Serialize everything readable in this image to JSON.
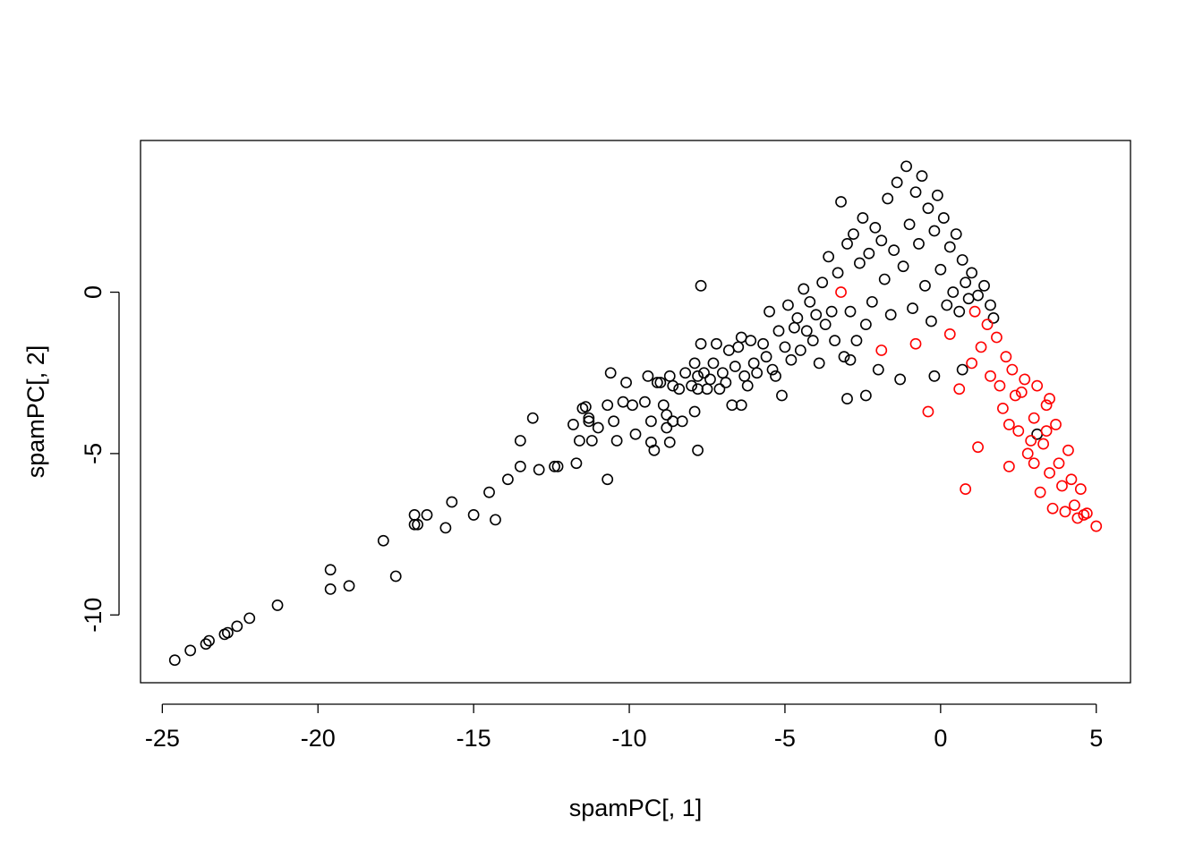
{
  "chart_data": {
    "type": "scatter",
    "xlabel": "spamPC[, 1]",
    "ylabel": "spamPC[, 2]",
    "xlim": [
      -25.7,
      6.1
    ],
    "ylim": [
      -12.1,
      4.7
    ],
    "x_ticks": [
      -25,
      -20,
      -15,
      -10,
      -5,
      0,
      5
    ],
    "x_tick_labels": [
      "-25",
      "-20",
      "-15",
      "-10",
      "-5",
      "0",
      "5"
    ],
    "y_ticks": [
      -10,
      -5,
      0
    ],
    "y_tick_labels": [
      "-10",
      "-5",
      "0"
    ],
    "grid": false,
    "marker": "open-circle",
    "series": [
      {
        "color": "#000000",
        "points": [
          [
            -24.6,
            -11.4
          ],
          [
            -24.1,
            -11.1
          ],
          [
            -23.6,
            -10.9
          ],
          [
            -23.5,
            -10.8
          ],
          [
            -23.0,
            -10.6
          ],
          [
            -22.9,
            -10.55
          ],
          [
            -22.6,
            -10.35
          ],
          [
            -22.2,
            -10.1
          ],
          [
            -21.3,
            -9.7
          ],
          [
            -19.6,
            -8.6
          ],
          [
            -19.6,
            -9.2
          ],
          [
            -19.0,
            -9.1
          ],
          [
            -17.9,
            -7.7
          ],
          [
            -17.5,
            -8.8
          ],
          [
            -16.9,
            -6.9
          ],
          [
            -16.9,
            -7.2
          ],
          [
            -16.8,
            -7.2
          ],
          [
            -16.5,
            -6.9
          ],
          [
            -15.9,
            -7.3
          ],
          [
            -15.7,
            -6.5
          ],
          [
            -15.0,
            -6.9
          ],
          [
            -14.5,
            -6.2
          ],
          [
            -14.3,
            -7.05
          ],
          [
            -13.9,
            -5.8
          ],
          [
            -13.5,
            -5.4
          ],
          [
            -13.5,
            -4.6
          ],
          [
            -13.1,
            -3.9
          ],
          [
            -12.9,
            -5.5
          ],
          [
            -12.4,
            -5.4
          ],
          [
            -12.3,
            -5.4
          ],
          [
            -11.7,
            -5.3
          ],
          [
            -11.6,
            -4.6
          ],
          [
            -11.5,
            -3.6
          ],
          [
            -11.3,
            -3.9
          ],
          [
            -11.3,
            -4.0
          ],
          [
            -11.2,
            -4.6
          ],
          [
            -11.4,
            -3.55
          ],
          [
            -11.8,
            -4.1
          ],
          [
            -11.0,
            -4.2
          ],
          [
            -10.7,
            -3.5
          ],
          [
            -10.7,
            -5.8
          ],
          [
            -10.6,
            -2.5
          ],
          [
            -10.5,
            -4.0
          ],
          [
            -10.4,
            -4.6
          ],
          [
            -10.2,
            -3.4
          ],
          [
            -10.1,
            -2.8
          ],
          [
            -9.9,
            -3.5
          ],
          [
            -9.8,
            -4.4
          ],
          [
            -9.5,
            -3.4
          ],
          [
            -9.4,
            -2.6
          ],
          [
            -9.3,
            -4.0
          ],
          [
            -9.3,
            -4.65
          ],
          [
            -9.2,
            -4.9
          ],
          [
            -9.1,
            -2.8
          ],
          [
            -9.0,
            -2.8
          ],
          [
            -8.9,
            -3.5
          ],
          [
            -8.8,
            -3.8
          ],
          [
            -8.7,
            -2.6
          ],
          [
            -8.6,
            -2.9
          ],
          [
            -8.8,
            -4.2
          ],
          [
            -8.7,
            -4.65
          ],
          [
            -8.6,
            -4.0
          ],
          [
            -8.4,
            -3.0
          ],
          [
            -8.3,
            -4.0
          ],
          [
            -8.2,
            -2.5
          ],
          [
            -8.0,
            -2.9
          ],
          [
            -7.9,
            -2.2
          ],
          [
            -7.8,
            -2.6
          ],
          [
            -7.8,
            -3.0
          ],
          [
            -7.9,
            -3.7
          ],
          [
            -7.8,
            -4.9
          ],
          [
            -7.7,
            -1.6
          ],
          [
            -7.6,
            -2.5
          ],
          [
            -7.5,
            -3.0
          ],
          [
            -7.4,
            -2.7
          ],
          [
            -7.3,
            -2.2
          ],
          [
            -7.2,
            -1.6
          ],
          [
            -7.1,
            -3.0
          ],
          [
            -7.7,
            0.2
          ],
          [
            -7.0,
            -2.5
          ],
          [
            -6.9,
            -2.8
          ],
          [
            -6.8,
            -1.8
          ],
          [
            -6.7,
            -3.5
          ],
          [
            -6.6,
            -2.3
          ],
          [
            -6.5,
            -1.7
          ],
          [
            -6.4,
            -1.4
          ],
          [
            -6.3,
            -2.6
          ],
          [
            -6.2,
            -2.9
          ],
          [
            -6.4,
            -3.5
          ],
          [
            -6.1,
            -1.5
          ],
          [
            -6.0,
            -2.2
          ],
          [
            -5.9,
            -2.5
          ],
          [
            -5.7,
            -1.6
          ],
          [
            -5.6,
            -2.0
          ],
          [
            -5.5,
            -0.6
          ],
          [
            -5.4,
            -2.4
          ],
          [
            -5.3,
            -2.6
          ],
          [
            -5.2,
            -1.2
          ],
          [
            -5.1,
            -3.2
          ],
          [
            -5.0,
            -1.7
          ],
          [
            -4.9,
            -0.4
          ],
          [
            -4.8,
            -2.1
          ],
          [
            -4.7,
            -1.1
          ],
          [
            -4.6,
            -0.8
          ],
          [
            -4.5,
            -1.8
          ],
          [
            -4.4,
            0.1
          ],
          [
            -4.3,
            -1.2
          ],
          [
            -4.2,
            -0.3
          ],
          [
            -4.1,
            -1.5
          ],
          [
            -4.0,
            -0.7
          ],
          [
            -3.9,
            -2.2
          ],
          [
            -3.8,
            0.3
          ],
          [
            -3.7,
            -1.0
          ],
          [
            -3.6,
            1.1
          ],
          [
            -3.5,
            -0.6
          ],
          [
            -3.4,
            -1.5
          ],
          [
            -3.3,
            0.6
          ],
          [
            -3.2,
            2.8
          ],
          [
            -3.1,
            -2.0
          ],
          [
            -3.0,
            1.5
          ],
          [
            -3.0,
            -3.3
          ],
          [
            -2.9,
            -0.6
          ],
          [
            -2.8,
            1.8
          ],
          [
            -2.7,
            -1.5
          ],
          [
            -2.6,
            0.9
          ],
          [
            -2.5,
            2.3
          ],
          [
            -2.4,
            -1.0
          ],
          [
            -2.3,
            1.2
          ],
          [
            -2.2,
            -0.3
          ],
          [
            -2.1,
            2.0
          ],
          [
            -2.0,
            -2.4
          ],
          [
            -1.9,
            1.6
          ],
          [
            -1.8,
            0.4
          ],
          [
            -1.7,
            2.9
          ],
          [
            -1.6,
            -0.7
          ],
          [
            -1.5,
            1.3
          ],
          [
            -1.4,
            3.4
          ],
          [
            -1.3,
            -2.7
          ],
          [
            -1.2,
            0.8
          ],
          [
            -1.1,
            3.9
          ],
          [
            -1.0,
            2.1
          ],
          [
            -0.9,
            -0.5
          ],
          [
            -0.8,
            3.1
          ],
          [
            -0.7,
            1.5
          ],
          [
            -0.6,
            3.6
          ],
          [
            -0.5,
            0.2
          ],
          [
            -0.4,
            2.6
          ],
          [
            -0.3,
            -0.9
          ],
          [
            -0.2,
            1.9
          ],
          [
            -0.1,
            3.0
          ],
          [
            0.0,
            0.7
          ],
          [
            0.1,
            2.3
          ],
          [
            0.2,
            -0.4
          ],
          [
            0.3,
            1.4
          ],
          [
            0.4,
            0.0
          ],
          [
            0.5,
            1.8
          ],
          [
            0.6,
            -0.6
          ],
          [
            0.7,
            1.0
          ],
          [
            0.8,
            0.3
          ],
          [
            0.9,
            -0.2
          ],
          [
            1.0,
            0.6
          ],
          [
            1.2,
            -0.1
          ],
          [
            1.4,
            0.2
          ],
          [
            1.6,
            -0.4
          ],
          [
            1.7,
            -0.8
          ],
          [
            -0.2,
            -2.6
          ],
          [
            0.7,
            -2.4
          ],
          [
            -2.9,
            -2.1
          ],
          [
            -2.4,
            -3.2
          ],
          [
            3.1,
            -4.4
          ]
        ]
      },
      {
        "color": "#ff0000",
        "points": [
          [
            -0.4,
            -3.7
          ],
          [
            0.8,
            -6.1
          ],
          [
            1.2,
            -4.8
          ],
          [
            0.6,
            -3.0
          ],
          [
            1.0,
            -2.2
          ],
          [
            1.3,
            -1.7
          ],
          [
            1.6,
            -2.6
          ],
          [
            1.8,
            -1.4
          ],
          [
            2.0,
            -3.6
          ],
          [
            2.2,
            -5.4
          ],
          [
            2.3,
            -2.4
          ],
          [
            2.5,
            -4.3
          ],
          [
            2.6,
            -3.1
          ],
          [
            2.8,
            -5.0
          ],
          [
            3.0,
            -3.9
          ],
          [
            3.1,
            -2.9
          ],
          [
            3.2,
            -6.2
          ],
          [
            3.3,
            -4.7
          ],
          [
            3.4,
            -3.5
          ],
          [
            3.5,
            -5.6
          ],
          [
            3.6,
            -6.7
          ],
          [
            3.7,
            -4.1
          ],
          [
            3.8,
            -5.3
          ],
          [
            3.9,
            -6.0
          ],
          [
            4.0,
            -6.8
          ],
          [
            4.1,
            -4.9
          ],
          [
            4.2,
            -5.8
          ],
          [
            4.3,
            -6.6
          ],
          [
            4.4,
            -7.0
          ],
          [
            4.5,
            -6.1
          ],
          [
            4.6,
            -6.9
          ],
          [
            4.7,
            -6.85
          ],
          [
            5.0,
            -7.25
          ],
          [
            2.1,
            -2.0
          ],
          [
            2.4,
            -3.2
          ],
          [
            2.7,
            -2.7
          ],
          [
            2.9,
            -4.6
          ],
          [
            3.5,
            -3.3
          ],
          [
            1.5,
            -1.0
          ],
          [
            1.1,
            -0.6
          ],
          [
            -3.2,
            0.0
          ],
          [
            -0.8,
            -1.6
          ],
          [
            -1.9,
            -1.8
          ],
          [
            0.3,
            -1.3
          ],
          [
            1.9,
            -2.9
          ],
          [
            2.2,
            -4.1
          ],
          [
            3.0,
            -5.3
          ],
          [
            3.4,
            -4.3
          ]
        ]
      }
    ]
  }
}
